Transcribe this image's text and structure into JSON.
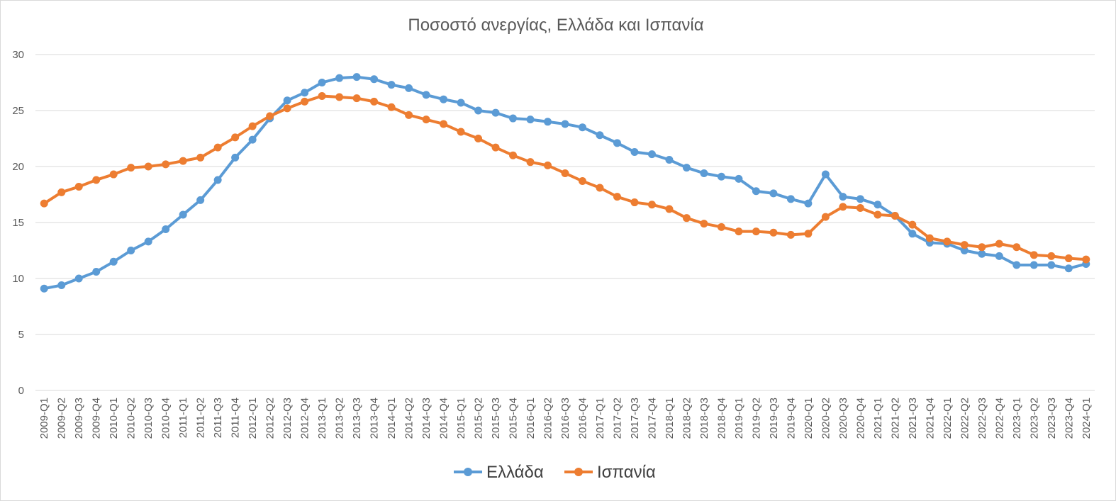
{
  "chart_data": {
    "type": "line",
    "title": "Ποσοστό ανεργίας, Ελλάδα και Ισπανία",
    "xlabel": "",
    "ylabel": "",
    "ylim": [
      0,
      30
    ],
    "yticks": [
      0,
      5,
      10,
      15,
      20,
      25,
      30
    ],
    "grid": true,
    "legend_position": "bottom",
    "categories": [
      "2009-Q1",
      "2009-Q2",
      "2009-Q3",
      "2009-Q4",
      "2010-Q1",
      "2010-Q2",
      "2010-Q3",
      "2010-Q4",
      "2011-Q1",
      "2011-Q2",
      "2011-Q3",
      "2011-Q4",
      "2012-Q1",
      "2012-Q2",
      "2012-Q3",
      "2012-Q4",
      "2013-Q1",
      "2013-Q2",
      "2013-Q3",
      "2013-Q4",
      "2014-Q1",
      "2014-Q2",
      "2014-Q3",
      "2014-Q4",
      "2015-Q1",
      "2015-Q2",
      "2015-Q3",
      "2015-Q4",
      "2016-Q1",
      "2016-Q2",
      "2016-Q3",
      "2016-Q4",
      "2017-Q1",
      "2017-Q2",
      "2017-Q3",
      "2017-Q4",
      "2018-Q1",
      "2018-Q2",
      "2018-Q3",
      "2018-Q4",
      "2019-Q1",
      "2019-Q2",
      "2019-Q3",
      "2019-Q4",
      "2020-Q1",
      "2020-Q2",
      "2020-Q3",
      "2020-Q4",
      "2021-Q1",
      "2021-Q2",
      "2021-Q3",
      "2021-Q4",
      "2022-Q1",
      "2022-Q2",
      "2022-Q3",
      "2022-Q4",
      "2023-Q1",
      "2023-Q2",
      "2023-Q3",
      "2023-Q4",
      "2024-Q1"
    ],
    "series": [
      {
        "name": "Ελλάδα",
        "color": "#5b9bd5",
        "values": [
          9.1,
          9.4,
          10.0,
          10.6,
          11.5,
          12.5,
          13.3,
          14.4,
          15.7,
          17.0,
          18.8,
          20.8,
          22.4,
          24.3,
          25.9,
          26.6,
          27.5,
          27.9,
          28.0,
          27.8,
          27.3,
          27.0,
          26.4,
          26.0,
          25.7,
          25.0,
          24.8,
          24.3,
          24.2,
          24.0,
          23.8,
          23.5,
          22.8,
          22.1,
          21.3,
          21.1,
          20.6,
          19.9,
          19.4,
          19.1,
          18.9,
          17.8,
          17.6,
          17.1,
          16.7,
          19.3,
          17.3,
          17.1,
          16.6,
          15.6,
          14.0,
          13.2,
          13.1,
          12.5,
          12.2,
          12.0,
          11.2,
          11.2,
          11.2,
          10.9,
          11.3
        ]
      },
      {
        "name": "Ισπανία",
        "color": "#ed7d31",
        "values": [
          16.7,
          17.7,
          18.2,
          18.8,
          19.3,
          19.9,
          20.0,
          20.2,
          20.5,
          20.8,
          21.7,
          22.6,
          23.6,
          24.5,
          25.2,
          25.8,
          26.3,
          26.2,
          26.1,
          25.8,
          25.3,
          24.6,
          24.2,
          23.8,
          23.1,
          22.5,
          21.7,
          21.0,
          20.4,
          20.1,
          19.4,
          18.7,
          18.1,
          17.3,
          16.8,
          16.6,
          16.2,
          15.4,
          14.9,
          14.6,
          14.2,
          14.2,
          14.1,
          13.9,
          14.0,
          15.5,
          16.4,
          16.3,
          15.7,
          15.6,
          14.8,
          13.6,
          13.3,
          13.0,
          12.8,
          13.1,
          12.8,
          12.1,
          12.0,
          11.8,
          11.7
        ]
      }
    ]
  }
}
